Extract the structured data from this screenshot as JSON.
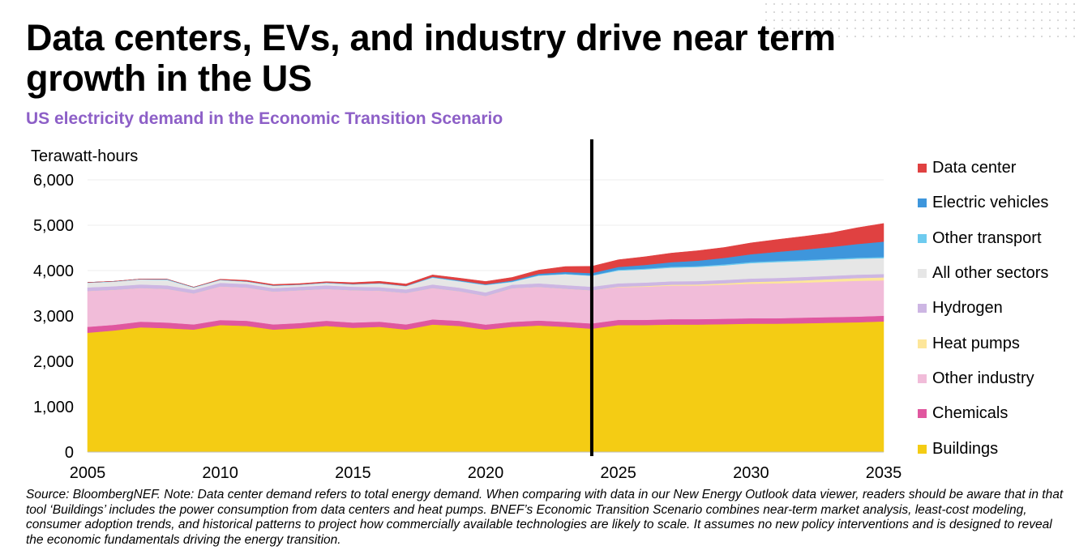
{
  "title": "Data centers, EVs, and industry drive near term growth in the US",
  "subtitle": "US electricity demand in the Economic Transition Scenario",
  "source_note": "Source: BloombergNEF. Note: Data center demand refers to total energy demand. When comparing with data in our New Energy Outlook data viewer, readers should be aware that in that tool ‘Buildings’ includes the power consumption from data centers and heat pumps. BNEF’s Economic Transition Scenario combines near-term market analysis, least-cost modeling, consumer adoption trends, and historical patterns to project how commercially available technologies are likely to scale. It assumes no new policy interventions and is designed to reveal the economic fundamentals driving the energy transition.",
  "chart_data": {
    "type": "area",
    "stacked": true,
    "ylabel": "Terawatt-hours",
    "xlabel": "",
    "ylim": [
      0,
      6000
    ],
    "yticks": [
      "0",
      "1,000",
      "2,000",
      "3,000",
      "4,000",
      "5,000",
      "6,000"
    ],
    "ytick_values": [
      0,
      1000,
      2000,
      3000,
      4000,
      5000,
      6000
    ],
    "xlim": [
      2005,
      2035
    ],
    "xticks": [
      "2005",
      "2010",
      "2015",
      "2020",
      "2025",
      "2030",
      "2035"
    ],
    "xtick_values": [
      2005,
      2010,
      2015,
      2020,
      2025,
      2030,
      2035
    ],
    "vertical_marker_x": 2024,
    "legend_position": "right",
    "grid": "horizontal",
    "x": [
      2005,
      2006,
      2007,
      2008,
      2009,
      2010,
      2011,
      2012,
      2013,
      2014,
      2015,
      2016,
      2017,
      2018,
      2019,
      2020,
      2021,
      2022,
      2023,
      2024,
      2025,
      2026,
      2027,
      2028,
      2029,
      2030,
      2031,
      2032,
      2033,
      2034,
      2035
    ],
    "series": [
      {
        "name": "Buildings",
        "color": "#f4cc14",
        "values": [
          2630,
          2680,
          2750,
          2730,
          2700,
          2800,
          2780,
          2700,
          2730,
          2780,
          2740,
          2760,
          2700,
          2810,
          2780,
          2700,
          2760,
          2790,
          2760,
          2720,
          2800,
          2800,
          2810,
          2810,
          2820,
          2830,
          2830,
          2840,
          2850,
          2860,
          2880
        ]
      },
      {
        "name": "Chemicals",
        "color": "#e0579f",
        "values": [
          130,
          125,
          125,
          125,
          115,
          110,
          115,
          115,
          115,
          115,
          115,
          115,
          115,
          115,
          115,
          110,
          110,
          110,
          110,
          115,
          115,
          115,
          120,
          120,
          120,
          120,
          120,
          125,
          125,
          125,
          125
        ]
      },
      {
        "name": "Other industry",
        "color": "#f1bcd9",
        "values": [
          790,
          770,
          740,
          740,
          680,
          740,
          730,
          720,
          720,
          700,
          710,
          680,
          690,
          690,
          650,
          630,
          740,
          740,
          730,
          730,
          720,
          730,
          740,
          740,
          750,
          760,
          770,
          770,
          780,
          790,
          780
        ]
      },
      {
        "name": "Heat pumps",
        "color": "#fde69a",
        "values": [
          0,
          0,
          0,
          0,
          0,
          0,
          0,
          0,
          0,
          0,
          0,
          0,
          0,
          0,
          0,
          0,
          0,
          0,
          0,
          0,
          10,
          15,
          20,
          25,
          30,
          40,
          45,
          50,
          55,
          60,
          65
        ]
      },
      {
        "name": "Hydrogen",
        "color": "#cdb6e3",
        "values": [
          80,
          80,
          80,
          80,
          80,
          80,
          80,
          80,
          80,
          80,
          80,
          80,
          80,
          80,
          80,
          80,
          80,
          80,
          80,
          80,
          75,
          75,
          75,
          75,
          75,
          75,
          75,
          75,
          75,
          75,
          75
        ]
      },
      {
        "name": "All other sectors",
        "color": "#e6e6e6",
        "values": [
          100,
          100,
          110,
          120,
          50,
          60,
          50,
          50,
          40,
          50,
          50,
          80,
          70,
          150,
          140,
          160,
          60,
          170,
          240,
          240,
          280,
          290,
          300,
          310,
          320,
          340,
          350,
          350,
          350,
          350,
          350
        ]
      },
      {
        "name": "Other transport",
        "color": "#6ecbef",
        "values": [
          10,
          10,
          10,
          15,
          10,
          10,
          10,
          10,
          10,
          10,
          10,
          10,
          10,
          10,
          10,
          10,
          10,
          10,
          10,
          10,
          20,
          20,
          20,
          20,
          25,
          25,
          25,
          25,
          25,
          25,
          25
        ]
      },
      {
        "name": "Electric vehicles",
        "color": "#3e96dc",
        "values": [
          0,
          0,
          0,
          0,
          0,
          0,
          0,
          0,
          0,
          0,
          0,
          0,
          0,
          10,
          10,
          10,
          20,
          30,
          40,
          50,
          60,
          80,
          100,
          120,
          140,
          170,
          200,
          230,
          260,
          300,
          340
        ]
      },
      {
        "name": "Data center",
        "color": "#e04141",
        "values": [
          0,
          0,
          0,
          0,
          0,
          10,
          20,
          20,
          20,
          20,
          30,
          40,
          40,
          40,
          50,
          60,
          70,
          80,
          120,
          150,
          160,
          180,
          200,
          220,
          230,
          250,
          270,
          290,
          310,
          360,
          400
        ]
      }
    ]
  }
}
